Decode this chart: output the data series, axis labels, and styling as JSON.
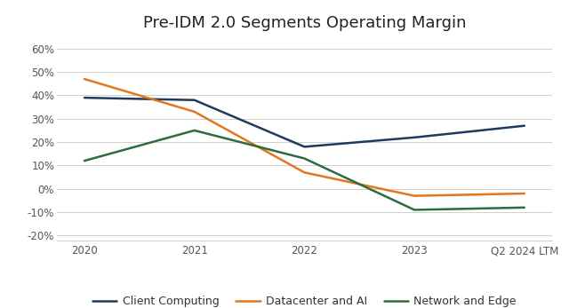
{
  "title": "Pre-IDM 2.0 Segments Operating Margin",
  "x_labels": [
    "2020",
    "2021",
    "2022",
    "2023",
    "Q2 2024 LTM"
  ],
  "series": [
    {
      "name": "Client Computing",
      "color": "#1e3a5f",
      "values": [
        39,
        38,
        18,
        22,
        27
      ]
    },
    {
      "name": "Datacenter and AI",
      "color": "#e07820",
      "values": [
        47,
        33,
        7,
        -3,
        -2
      ]
    },
    {
      "name": "Network and Edge",
      "color": "#2e6b3e",
      "values": [
        12,
        25,
        13,
        -9,
        -8
      ]
    }
  ],
  "ylim": [
    -22,
    65
  ],
  "yticks": [
    -20,
    -10,
    0,
    10,
    20,
    30,
    40,
    50,
    60
  ],
  "background_color": "#ffffff",
  "grid_color": "#d0d0d0",
  "title_fontsize": 13,
  "legend_fontsize": 9,
  "tick_fontsize": 8.5,
  "linewidth": 1.8
}
